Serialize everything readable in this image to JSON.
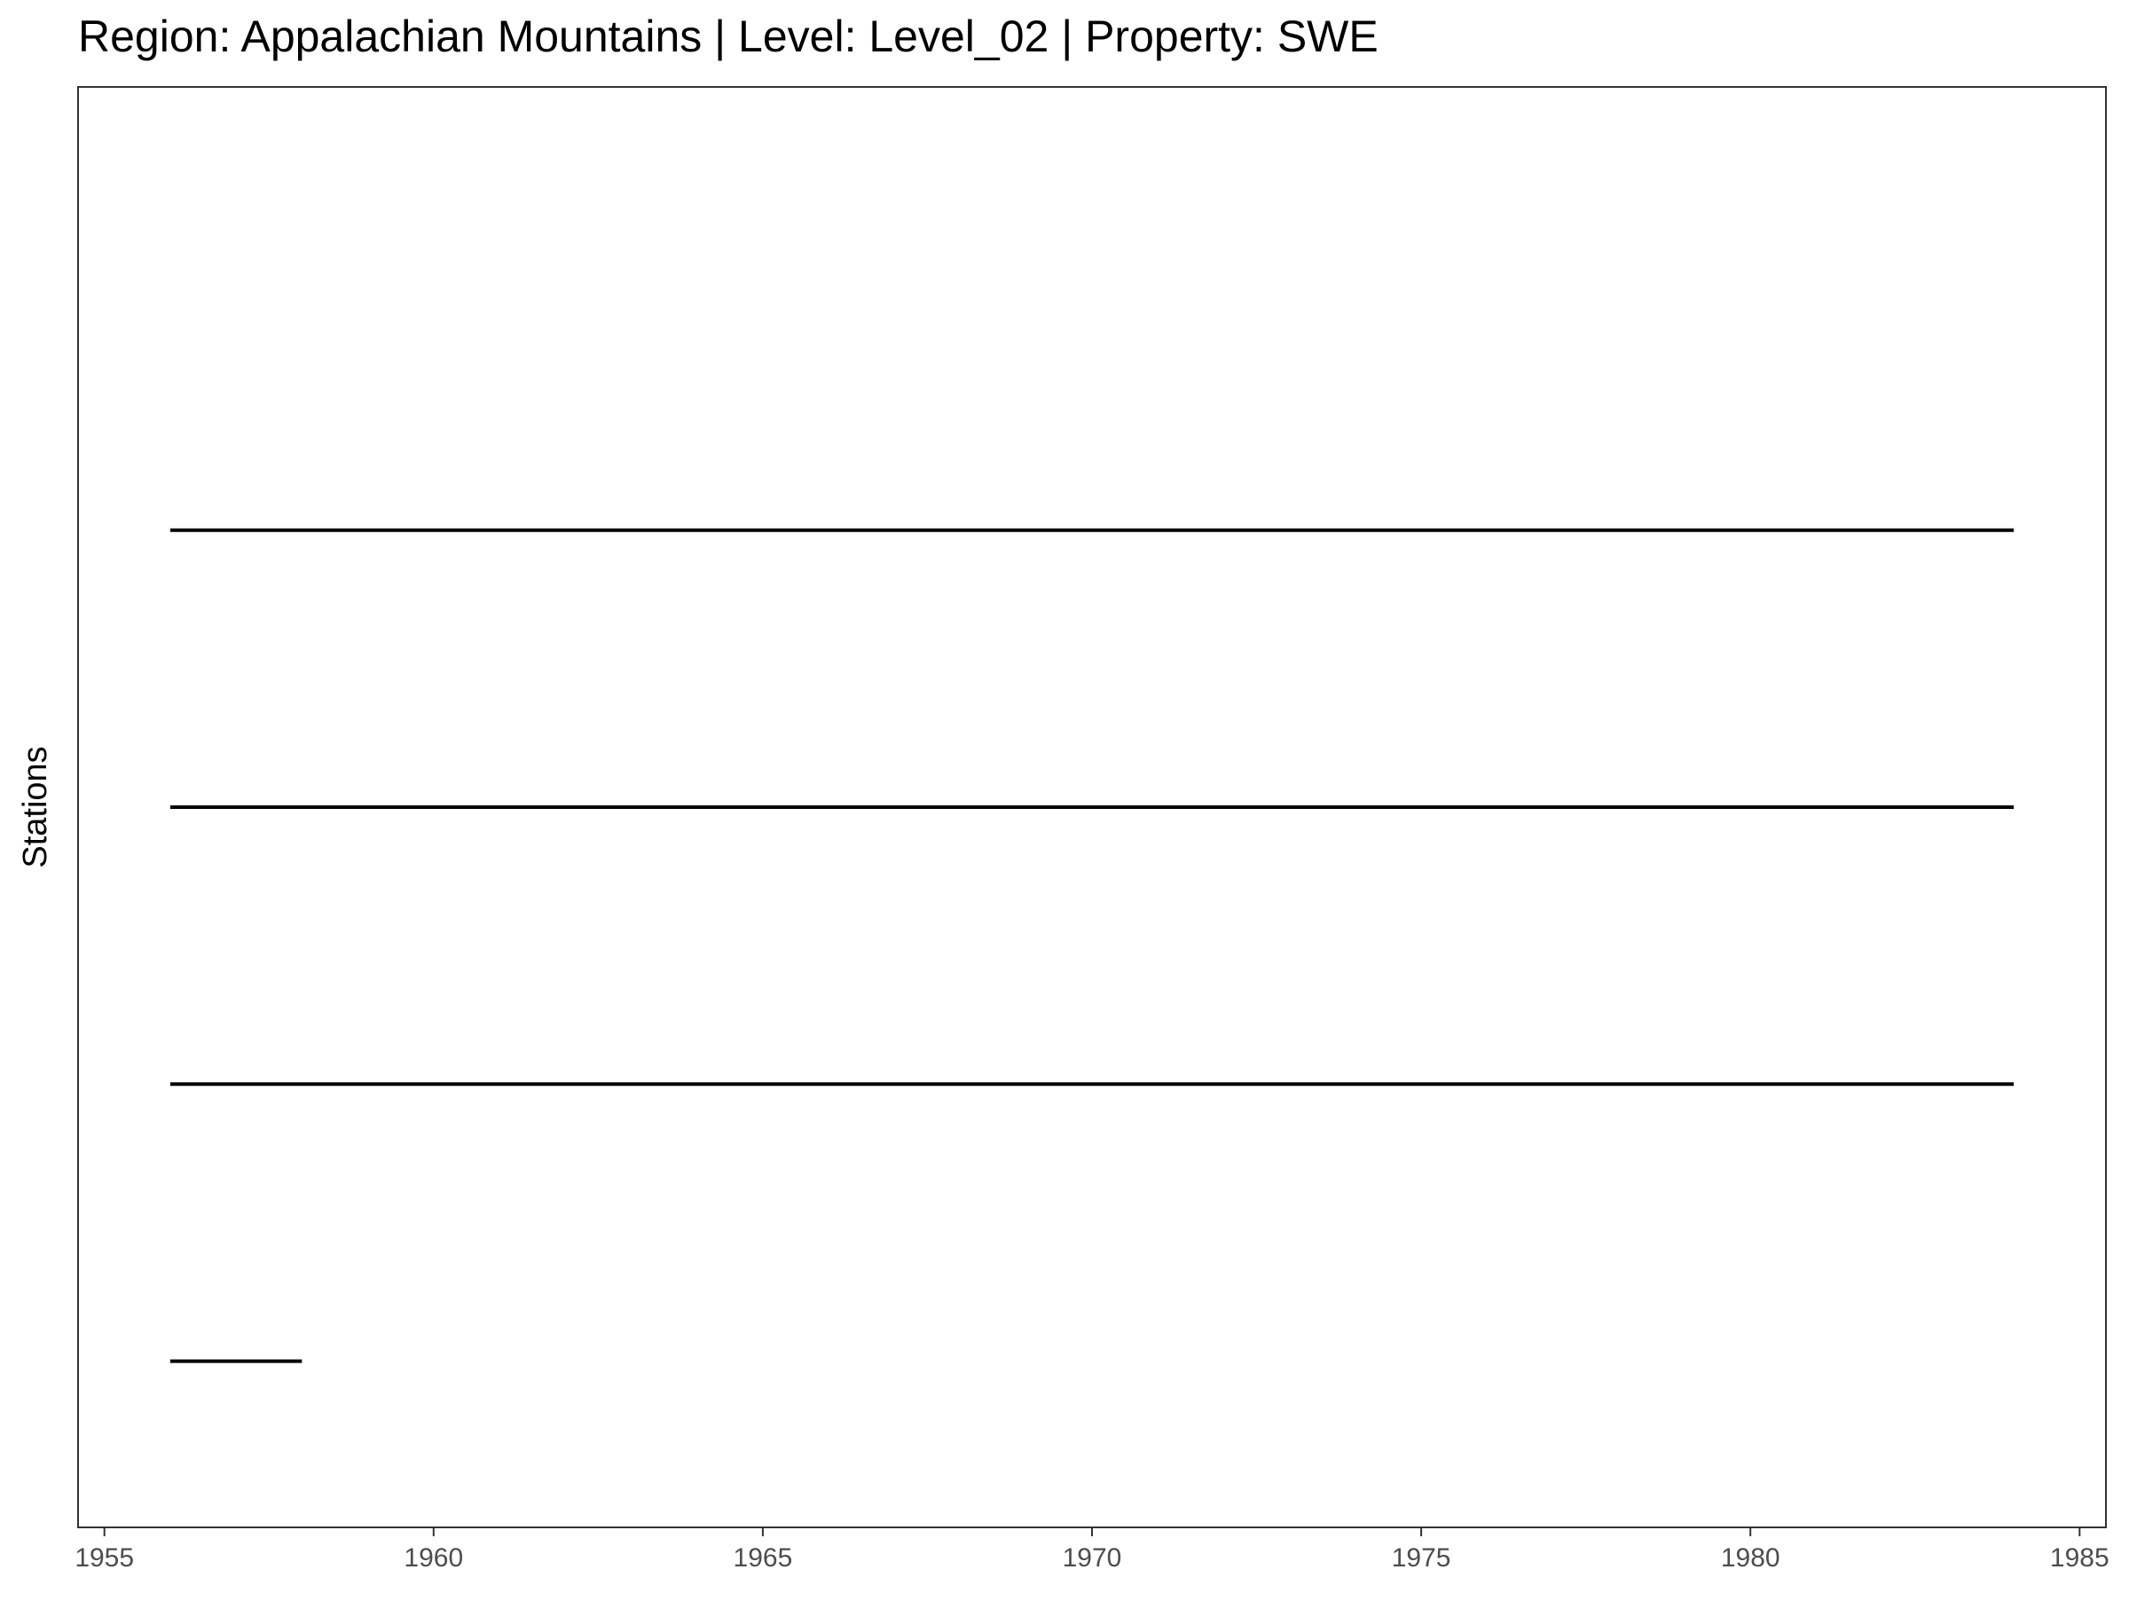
{
  "chart_data": {
    "type": "line",
    "title": "Region: Appalachian Mountains | Level: Level_02 | Property: SWE",
    "xlabel": "",
    "ylabel": "Stations",
    "xlim": [
      1954.6,
      1985.4
    ],
    "ylim": [
      0.4,
      5.6
    ],
    "x_ticks": [
      "1955",
      "1960",
      "1965",
      "1970",
      "1975",
      "1980",
      "1985"
    ],
    "y_ticks_shown": false,
    "grid": false,
    "legend": "none",
    "line_color": "#000000",
    "series": [
      {
        "y": 1,
        "x": [
          1956.0,
          1958.0
        ]
      },
      {
        "y": 2,
        "x": [
          1956.0,
          1984.0
        ]
      },
      {
        "y": 3,
        "x": [
          1956.0,
          1984.0
        ]
      },
      {
        "y": 4,
        "x": [
          1956.0,
          1984.0
        ]
      }
    ]
  }
}
